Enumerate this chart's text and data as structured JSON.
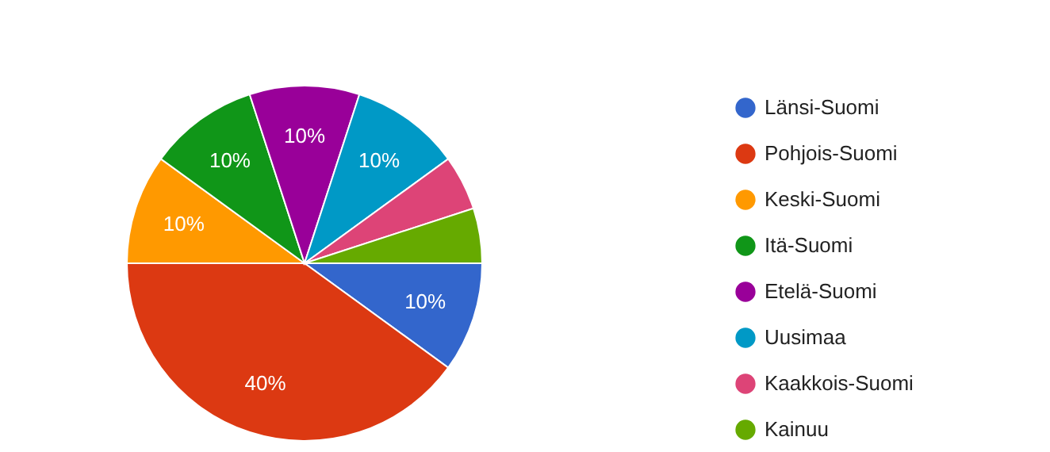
{
  "chart_data": {
    "type": "pie",
    "categories": [
      "Länsi-Suomi",
      "Pohjois-Suomi",
      "Keski-Suomi",
      "Itä-Suomi",
      "Etelä-Suomi",
      "Uusimaa",
      "Kaakkois-Suomi",
      "Kainuu"
    ],
    "values": [
      10,
      40,
      10,
      10,
      10,
      10,
      5,
      5
    ],
    "colors": [
      "#3366cc",
      "#dc3912",
      "#ff9900",
      "#109618",
      "#990099",
      "#0099c6",
      "#dd4477",
      "#66aa00"
    ],
    "value_labels": [
      "10%",
      "40%",
      "10%",
      "10%",
      "10%",
      "10%",
      null,
      null
    ],
    "legend": "right"
  }
}
